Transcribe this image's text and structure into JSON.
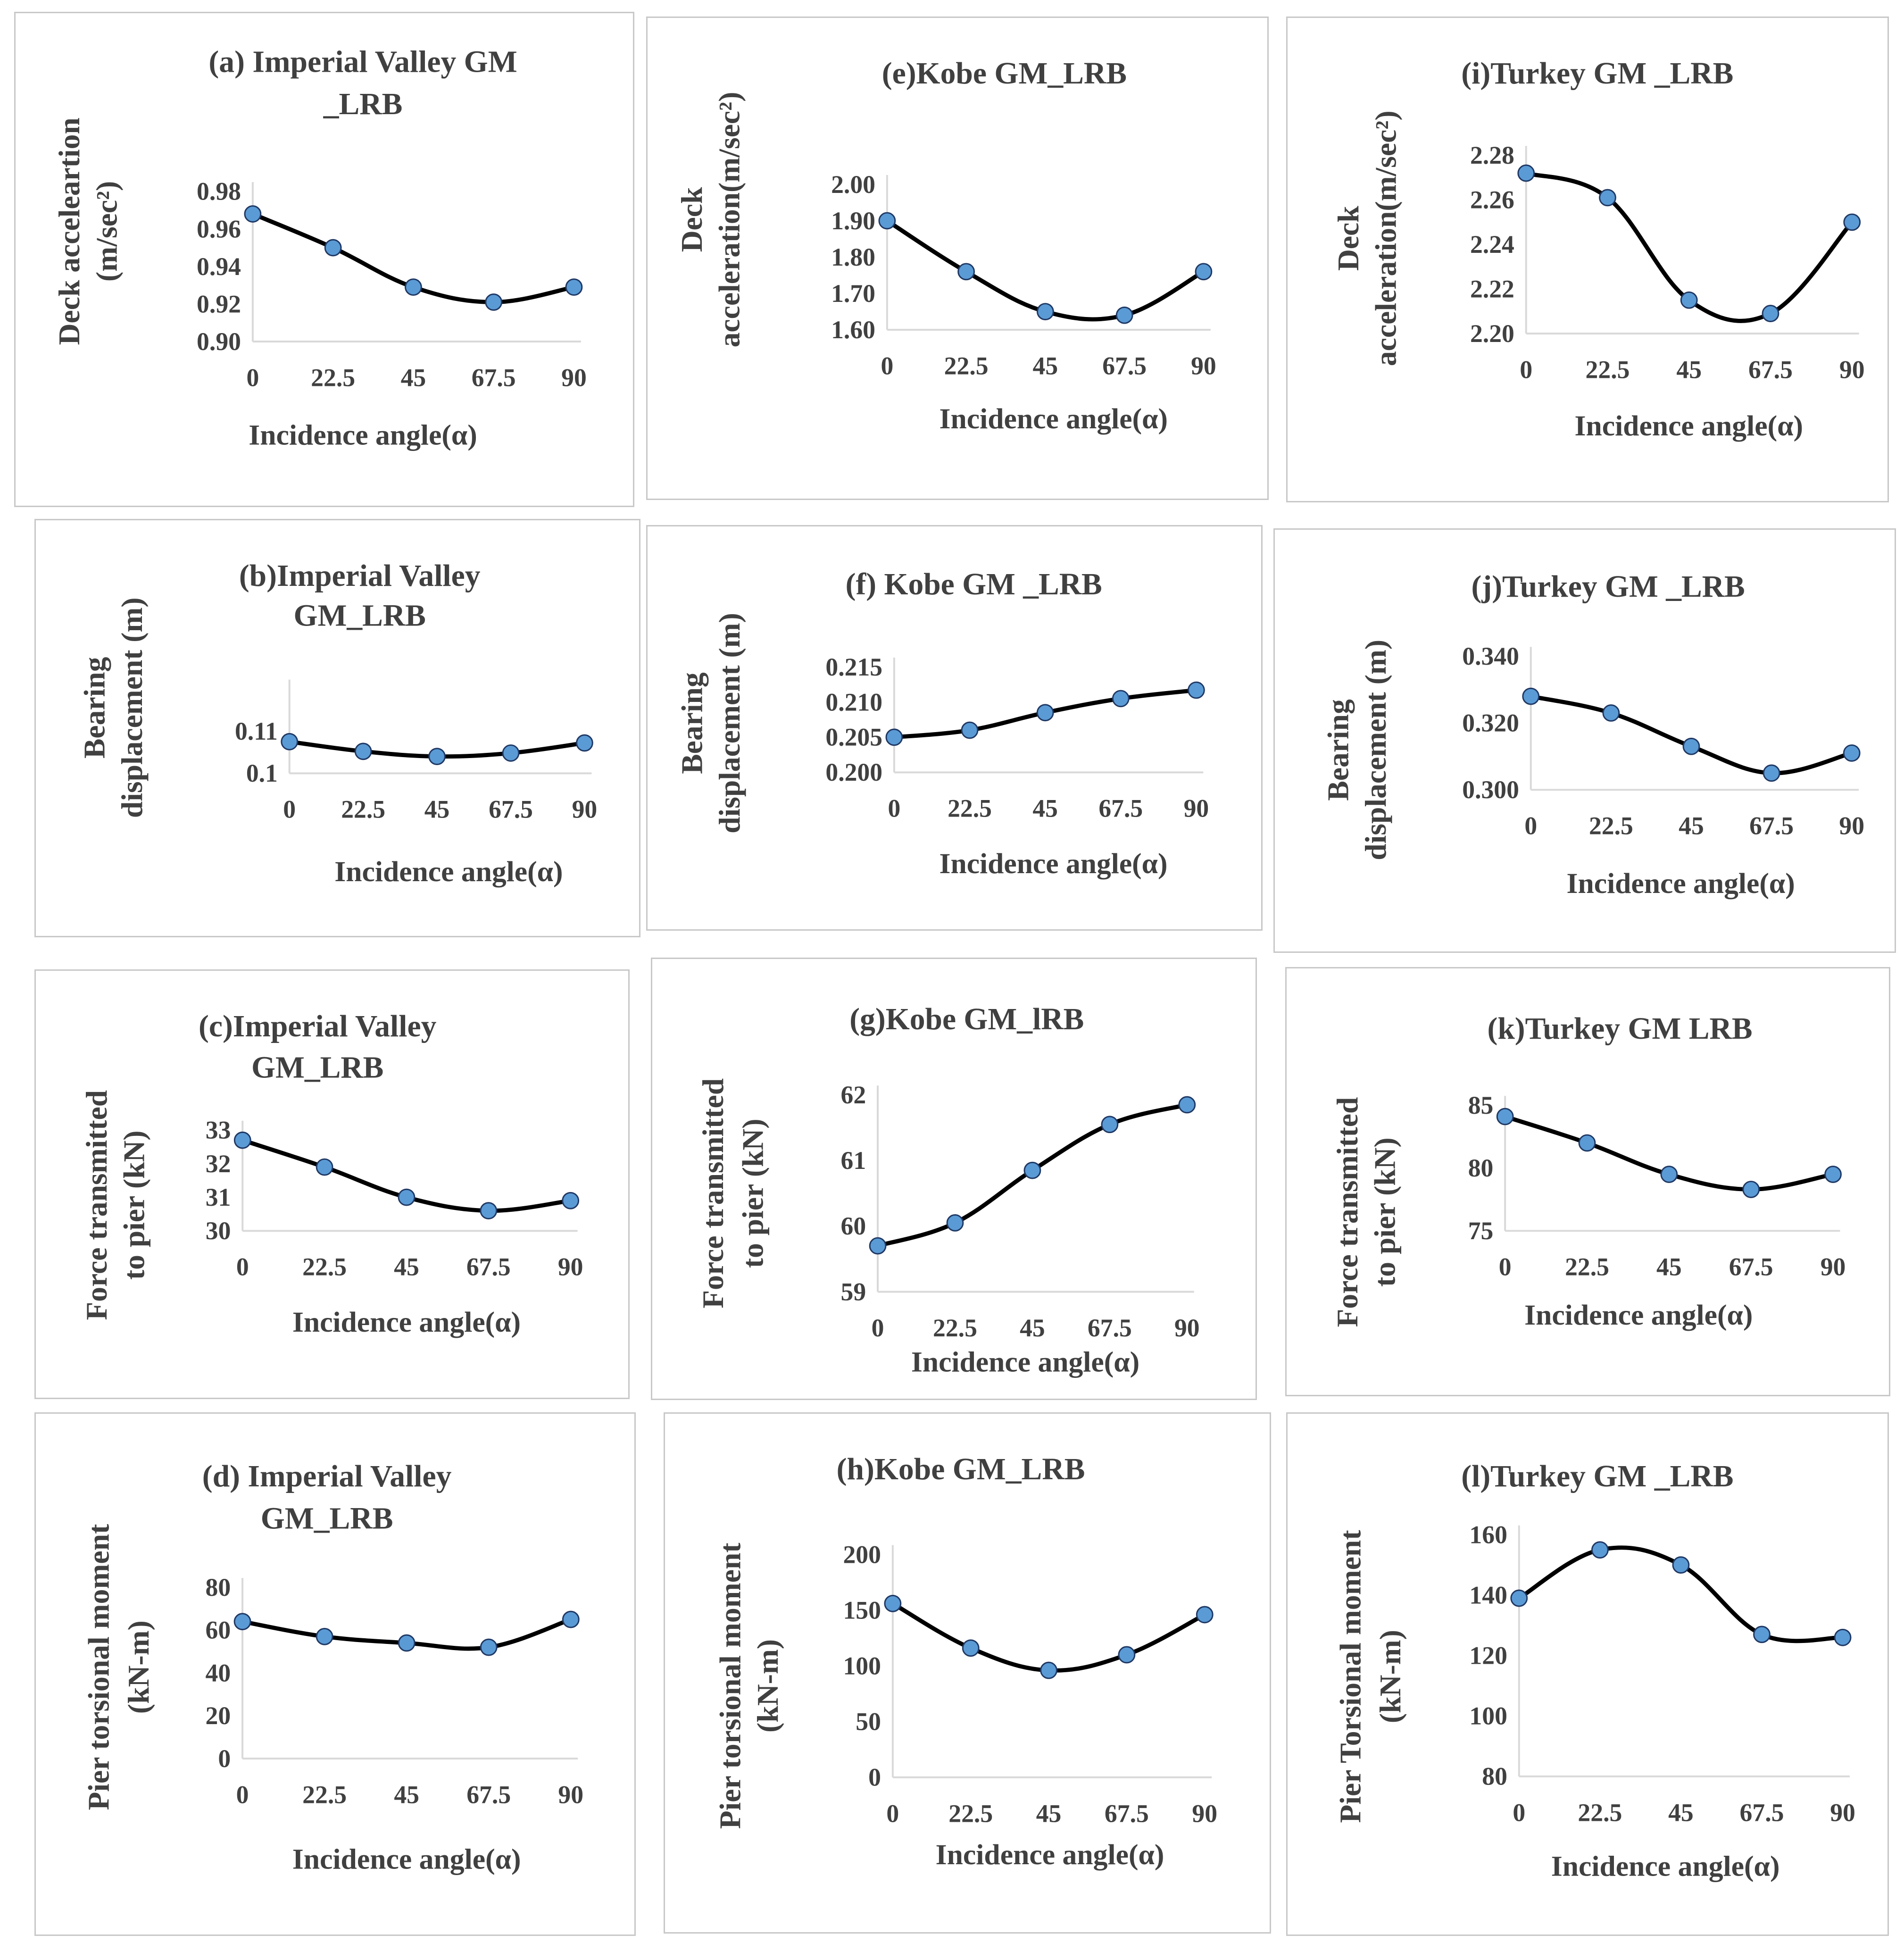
{
  "chart_data": [
    {
      "id": "a",
      "type": "line",
      "title": [
        "(a) Imperial Valley GM",
        "_LRB"
      ],
      "ylabel": [
        "Deck acceleartion",
        "(m/sec²)"
      ],
      "xlabel": "Incidence angle(α)",
      "categories": [
        "0",
        "22.5",
        "45",
        "67.5",
        "90"
      ],
      "values": [
        0.968,
        0.95,
        0.929,
        0.921,
        0.929
      ],
      "ylim": [
        0.9,
        0.98
      ],
      "yticks": [
        "0.90",
        "0.92",
        "0.94",
        "0.96",
        "0.98"
      ]
    },
    {
      "id": "b",
      "type": "line",
      "title": [
        "(b)Imperial Valley",
        "GM_LRB"
      ],
      "ylabel": [
        "Bearing",
        "displacement (m)"
      ],
      "xlabel": "Incidence angle(α)",
      "categories": [
        "0",
        "22.5",
        "45",
        "67.5",
        "90"
      ],
      "values": [
        0.1075,
        0.1052,
        0.104,
        0.1048,
        0.1072
      ],
      "ylim": [
        0.1,
        0.12
      ],
      "yticks": [
        "0.1",
        "0.11"
      ]
    },
    {
      "id": "c",
      "type": "line",
      "title": [
        "(c)Imperial Valley",
        "GM_LRB"
      ],
      "ylabel": [
        "Force transmitted",
        "to pier (kN)"
      ],
      "xlabel": "Incidence angle(α)",
      "categories": [
        "0",
        "22.5",
        "45",
        "67.5",
        "90"
      ],
      "values": [
        32.7,
        31.9,
        31.0,
        30.6,
        30.9
      ],
      "ylim": [
        30,
        33
      ],
      "yticks": [
        "30",
        "31",
        "32",
        "33"
      ]
    },
    {
      "id": "d",
      "type": "line",
      "title": [
        "(d) Imperial Valley",
        "GM_LRB"
      ],
      "ylabel": [
        "Pier torsional moment",
        "(kN-m)"
      ],
      "xlabel": "Incidence angle(α)",
      "categories": [
        "0",
        "22.5",
        "45",
        "67.5",
        "90"
      ],
      "values": [
        64,
        57,
        54,
        52,
        65
      ],
      "ylim": [
        0,
        80
      ],
      "yticks": [
        "0",
        "20",
        "40",
        "60",
        "80"
      ]
    },
    {
      "id": "e",
      "type": "line",
      "title": [
        "(e)Kobe GM_LRB"
      ],
      "ylabel": [
        "Deck",
        "acceleration(m/sec²)"
      ],
      "xlabel": "Incidence angle(α)",
      "categories": [
        "0",
        "22.5",
        "45",
        "67.5",
        "90"
      ],
      "values": [
        1.9,
        1.76,
        1.65,
        1.64,
        1.76
      ],
      "ylim": [
        1.6,
        2.0
      ],
      "yticks": [
        "1.60",
        "1.70",
        "1.80",
        "1.90",
        "2.00"
      ]
    },
    {
      "id": "f",
      "type": "line",
      "title": [
        "(f) Kobe GM _LRB"
      ],
      "ylabel": [
        "Bearing",
        "displacement (m)"
      ],
      "xlabel": "Incidence angle(α)",
      "categories": [
        "0",
        "22.5",
        "45",
        "67.5",
        "90"
      ],
      "values": [
        0.205,
        0.206,
        0.2085,
        0.2105,
        0.2117
      ],
      "ylim": [
        0.2,
        0.215
      ],
      "yticks": [
        "0.200",
        "0.205",
        "0.210",
        "0.215"
      ]
    },
    {
      "id": "g",
      "type": "line",
      "title": [
        "(g)Kobe GM_lRB"
      ],
      "ylabel": [
        "Force transmitted",
        "to pier (kN)"
      ],
      "xlabel": "Incidence angle(α)",
      "categories": [
        "0",
        "22.5",
        "45",
        "67.5",
        "90"
      ],
      "values": [
        59.7,
        60.05,
        60.85,
        61.55,
        61.85
      ],
      "ylim": [
        59,
        62
      ],
      "yticks": [
        "59",
        "60",
        "61",
        "62"
      ]
    },
    {
      "id": "h",
      "type": "line",
      "title": [
        "(h)Kobe GM_LRB"
      ],
      "ylabel": [
        "Pier torsional moment",
        "(kN-m)"
      ],
      "xlabel": "Incidence angle(α)",
      "categories": [
        "0",
        "22.5",
        "45",
        "67.5",
        "90"
      ],
      "values": [
        156,
        116,
        96,
        110,
        146
      ],
      "ylim": [
        0,
        200
      ],
      "yticks": [
        "0",
        "50",
        "100",
        "150",
        "200"
      ]
    },
    {
      "id": "i",
      "type": "line",
      "title": [
        "(i)Turkey GM _LRB"
      ],
      "ylabel": [
        "Deck",
        "acceleration(m/sec²)"
      ],
      "xlabel": "Incidence angle(α)",
      "categories": [
        "0",
        "22.5",
        "45",
        "67.5",
        "90"
      ],
      "values": [
        2.272,
        2.261,
        2.215,
        2.209,
        2.25
      ],
      "ylim": [
        2.2,
        2.28
      ],
      "yticks": [
        "2.20",
        "2.22",
        "2.24",
        "2.26",
        "2.28"
      ]
    },
    {
      "id": "j",
      "type": "line",
      "title": [
        "(j)Turkey GM _LRB"
      ],
      "ylabel": [
        "Bearing",
        "displacement (m)"
      ],
      "xlabel": "Incidence angle(α)",
      "categories": [
        "0",
        "22.5",
        "45",
        "67.5",
        "90"
      ],
      "values": [
        0.328,
        0.323,
        0.313,
        0.305,
        0.311
      ],
      "ylim": [
        0.3,
        0.34
      ],
      "yticks": [
        "0.300",
        "0.320",
        "0.340"
      ]
    },
    {
      "id": "k",
      "type": "line",
      "title": [
        "(k)Turkey GM LRB"
      ],
      "ylabel": [
        "Force transmitted",
        "to pier (kN)"
      ],
      "xlabel": "Incidence angle(α)",
      "categories": [
        "0",
        "22.5",
        "45",
        "67.5",
        "90"
      ],
      "values": [
        84.1,
        82.0,
        79.5,
        78.3,
        79.5
      ],
      "ylim": [
        75,
        85
      ],
      "yticks": [
        "75",
        "80",
        "85"
      ]
    },
    {
      "id": "l",
      "type": "line",
      "title": [
        "(l)Turkey GM _LRB"
      ],
      "ylabel": [
        "Pier Torsional moment",
        "(kN-m)"
      ],
      "xlabel": "Incidence angle(α)",
      "categories": [
        "0",
        "22.5",
        "45",
        "67.5",
        "90"
      ],
      "values": [
        139,
        155,
        150,
        127,
        126
      ],
      "ylim": [
        80,
        160
      ],
      "yticks": [
        "80",
        "100",
        "120",
        "140",
        "160"
      ]
    }
  ]
}
